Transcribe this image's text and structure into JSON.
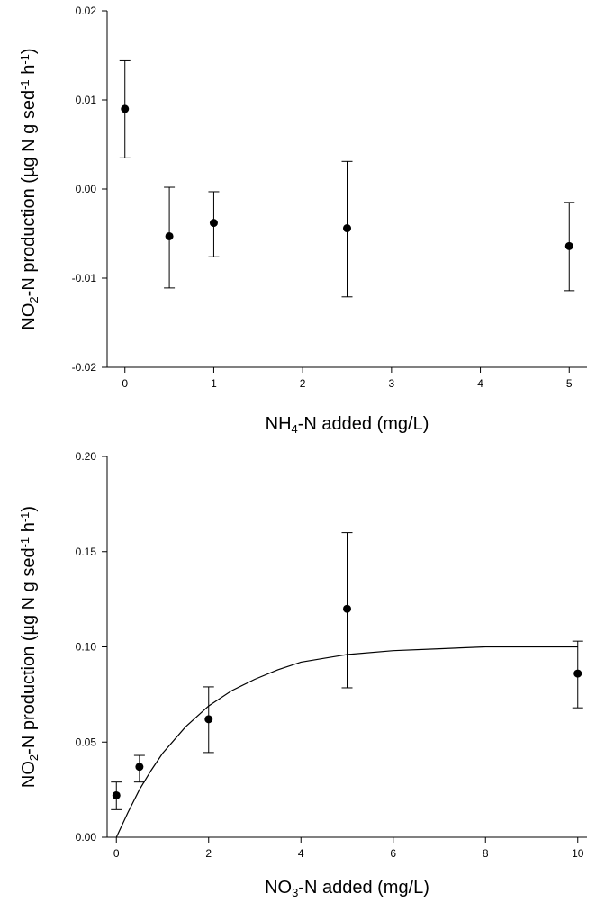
{
  "chart_data": [
    {
      "type": "scatter",
      "x_label_parts": [
        "NH",
        "4",
        "-N added (mg/L)"
      ],
      "y_label_parts": [
        "NO",
        "2",
        "-N production (µg N g sed",
        "-1",
        " h",
        "-1",
        ")"
      ],
      "xlim": [
        -0.2,
        5.2
      ],
      "ylim": [
        -0.02,
        0.02
      ],
      "x_ticks": [
        0,
        1,
        2,
        3,
        4,
        5
      ],
      "x_tick_labels": [
        "0",
        "1",
        "2",
        "3",
        "4",
        "5"
      ],
      "y_ticks": [
        -0.02,
        -0.01,
        0.0,
        0.01,
        0.02
      ],
      "y_tick_labels": [
        "-0.02",
        "-0.01",
        "0.00",
        "0.01",
        "0.02"
      ],
      "grid": false,
      "points": [
        {
          "x": 0,
          "y": 0.009,
          "err_low": 0.0035,
          "err_high": 0.0144
        },
        {
          "x": 0.5,
          "y": -0.0053,
          "err_low": -0.0111,
          "err_high": 0.0002
        },
        {
          "x": 1,
          "y": -0.0038,
          "err_low": -0.0076,
          "err_high": -0.0003
        },
        {
          "x": 2.5,
          "y": -0.0044,
          "err_low": -0.0121,
          "err_high": 0.0031
        },
        {
          "x": 5,
          "y": -0.0064,
          "err_low": -0.0114,
          "err_high": -0.0015
        }
      ]
    },
    {
      "type": "scatter",
      "x_label_parts": [
        "NO",
        "3",
        "-N added (mg/L)"
      ],
      "y_label_parts": [
        "NO",
        "2",
        "-N production (µg N g sed",
        "-1",
        " h",
        "-1",
        ")"
      ],
      "xlim": [
        -0.2,
        10.2
      ],
      "ylim": [
        0.0,
        0.2
      ],
      "x_ticks": [
        0,
        2,
        4,
        6,
        8,
        10
      ],
      "x_tick_labels": [
        "0",
        "2",
        "4",
        "6",
        "8",
        "10"
      ],
      "y_ticks": [
        0.0,
        0.05,
        0.1,
        0.15,
        0.2
      ],
      "y_tick_labels": [
        "0.00",
        "0.05",
        "0.10",
        "0.15",
        "0.20"
      ],
      "grid": false,
      "points": [
        {
          "x": 0,
          "y": 0.022,
          "err_low": 0.0145,
          "err_high": 0.029
        },
        {
          "x": 0.5,
          "y": 0.037,
          "err_low": 0.029,
          "err_high": 0.043
        },
        {
          "x": 2,
          "y": 0.062,
          "err_low": 0.0445,
          "err_high": 0.079
        },
        {
          "x": 5,
          "y": 0.12,
          "err_low": 0.0785,
          "err_high": 0.16
        },
        {
          "x": 10,
          "y": 0.086,
          "err_low": 0.068,
          "err_high": 0.103
        }
      ],
      "fit_curve": {
        "x": [
          0,
          0.25,
          0.5,
          0.75,
          1,
          1.5,
          2,
          2.5,
          3,
          3.5,
          4,
          4.5,
          5,
          6,
          7,
          8,
          9,
          10
        ],
        "y": [
          0,
          0.013,
          0.025,
          0.035,
          0.044,
          0.058,
          0.069,
          0.077,
          0.083,
          0.088,
          0.092,
          0.094,
          0.096,
          0.098,
          0.099,
          0.1,
          0.1,
          0.1
        ]
      }
    }
  ]
}
